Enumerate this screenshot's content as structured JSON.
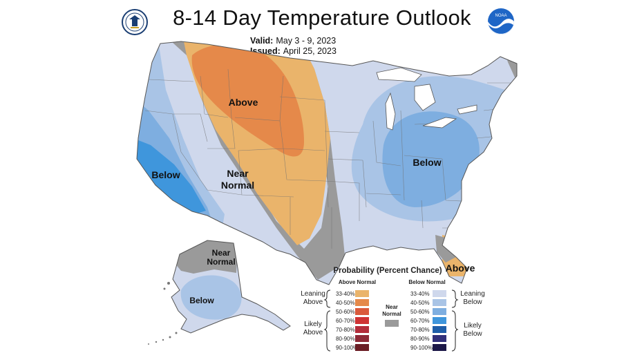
{
  "title": "8-14 Day Temperature Outlook",
  "valid_label": "Valid:",
  "valid_value": "May 3 - 9, 2023",
  "issued_label": "Issued:",
  "issued_value": "April 25, 2023",
  "logos": {
    "left": "commerce-seal-icon",
    "right": "noaa-logo-icon",
    "right_text": "NOAA"
  },
  "map_labels": {
    "above_west": "Above",
    "below_ca": "Below",
    "near_normal_1": "Near",
    "near_normal_2": "Normal",
    "below_east": "Below",
    "above_fl": "Above",
    "ak_near_1": "Near",
    "ak_near_2": "Normal",
    "ak_below": "Below"
  },
  "legend": {
    "title": "Probability (Percent Chance)",
    "above_header": "Above Normal",
    "below_header": "Below Normal",
    "leaning_above_1": "Leaning",
    "leaning_above_2": "Above",
    "likely_above_1": "Likely",
    "likely_above_2": "Above",
    "leaning_below_1": "Leaning",
    "leaning_below_2": "Below",
    "likely_below_1": "Likely",
    "likely_below_2": "Below",
    "near_normal_1": "Near",
    "near_normal_2": "Normal",
    "near_color": "#9a9a9a",
    "above": [
      {
        "label": "33-40%",
        "color": "#eab46b"
      },
      {
        "label": "40-50%",
        "color": "#e5894a"
      },
      {
        "label": "50-60%",
        "color": "#da5a3c"
      },
      {
        "label": "60-70%",
        "color": "#cf3334"
      },
      {
        "label": "70-80%",
        "color": "#b42d3b"
      },
      {
        "label": "80-90%",
        "color": "#8e2a37"
      },
      {
        "label": "90-100%",
        "color": "#6b1e25"
      }
    ],
    "below": [
      {
        "label": "33-40%",
        "color": "#cfd8ec"
      },
      {
        "label": "40-50%",
        "color": "#a9c4e6"
      },
      {
        "label": "50-60%",
        "color": "#7eaee0"
      },
      {
        "label": "60-70%",
        "color": "#3f96dc"
      },
      {
        "label": "70-80%",
        "color": "#1f5ea9"
      },
      {
        "label": "80-90%",
        "color": "#32307a"
      },
      {
        "label": "90-100%",
        "color": "#1c1848"
      }
    ]
  },
  "colors": {
    "near": "#9a9a9a",
    "above_lean": "#eab46b",
    "above_40": "#e5894a",
    "below_lean": "#cfd8ec",
    "below_40": "#a9c4e6",
    "below_50": "#7eaee0",
    "below_60": "#3f96dc"
  }
}
